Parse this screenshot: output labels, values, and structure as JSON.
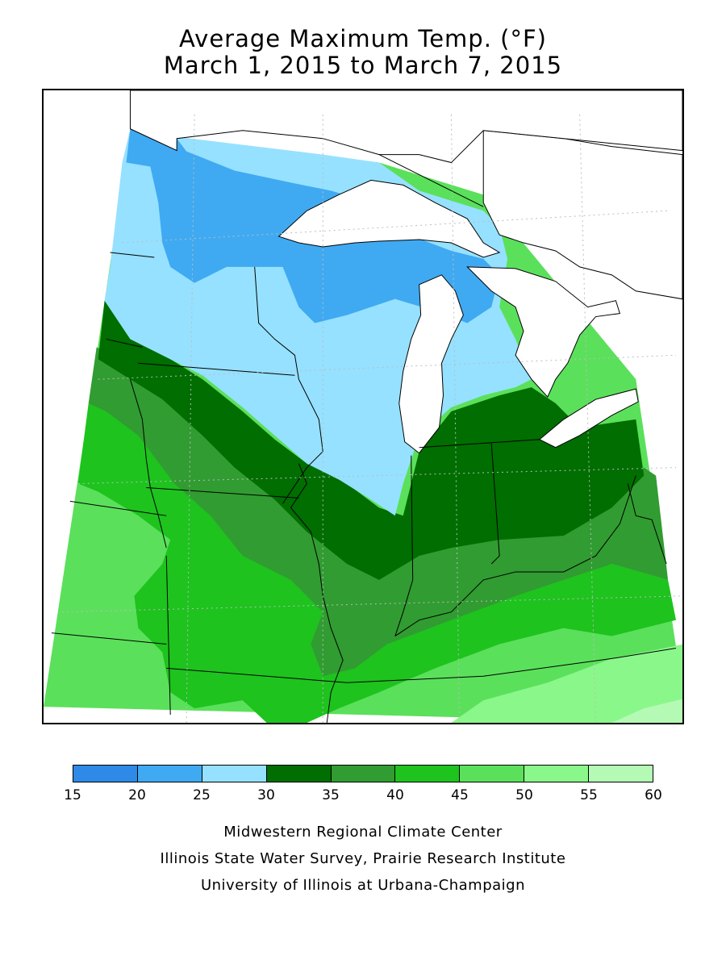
{
  "title": {
    "line1": "Average Maximum Temp. (°F)",
    "line2": "March 1, 2015 to March 7, 2015"
  },
  "map": {
    "region": "Midwest",
    "bands": [
      {
        "range": "15-20",
        "color": "#2e8ae6"
      },
      {
        "range": "20-25",
        "color": "#3faaf2"
      },
      {
        "range": "25-30",
        "color": "#96e1ff"
      },
      {
        "range": "30-35",
        "color": "#006e00"
      },
      {
        "range": "35-40",
        "color": "#319c31"
      },
      {
        "range": "40-45",
        "color": "#1ec31e"
      },
      {
        "range": "45-50",
        "color": "#5be05b"
      },
      {
        "range": "50-55",
        "color": "#8af78a"
      },
      {
        "range": "55-60",
        "color": "#b4fab4"
      }
    ],
    "lakes_color": "#ffffff",
    "border_color": "#000000"
  },
  "legend": {
    "ticks": [
      "15",
      "20",
      "25",
      "30",
      "35",
      "40",
      "45",
      "50",
      "55",
      "60"
    ]
  },
  "credits": {
    "line1": "Midwestern Regional Climate Center",
    "line2": "Illinois State Water Survey, Prairie Research Institute",
    "line3": "University of Illinois at Urbana-Champaign"
  }
}
